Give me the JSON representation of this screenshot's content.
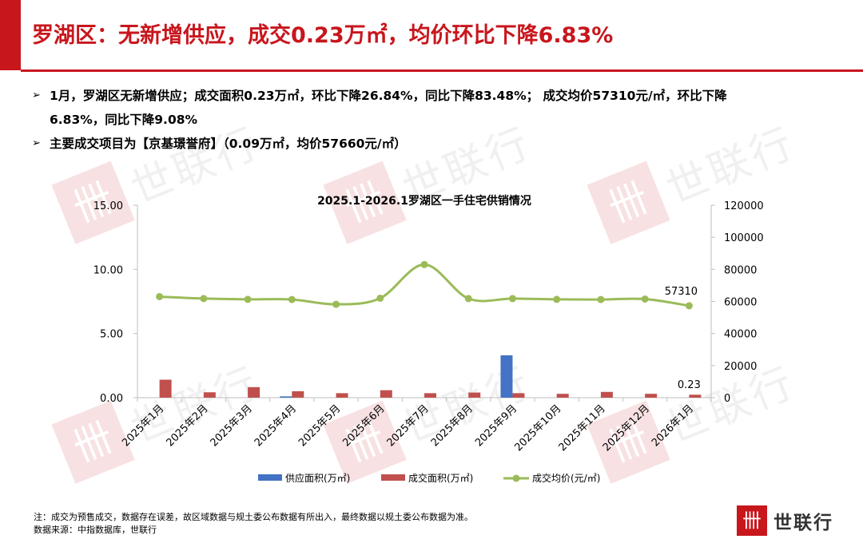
{
  "header": {
    "title": "罗湖区：无新增供应，成交0.23万㎡，均价环比下降6.83%"
  },
  "bullets": [
    {
      "line1": "1月，罗湖区无新增供应；成交面积0.23万㎡，环比下降26.84%，同比下降83.48%； 成交均价57310元/㎡，环比下降",
      "line2": "6.83%，同比下降9.08%"
    },
    {
      "line1": "主要成交项目为【京基璟誉府】（0.09万㎡，均价57660元/㎡）"
    }
  ],
  "watermark": {
    "text": "世联行",
    "logo_glyph": "卌"
  },
  "chart_data": {
    "type": "bar",
    "title": "2025.1-2026.1罗湖区一手住宅供销情况",
    "categories": [
      "2025年1月",
      "2025年2月",
      "2025年3月",
      "2025年4月",
      "2025年5月",
      "2025年6月",
      "2025年7月",
      "2025年8月",
      "2025年9月",
      "2025年10月",
      "2025年11月",
      "2025年12月",
      "2026年1月"
    ],
    "y_left": {
      "min": 0,
      "max": 15,
      "ticks": [
        "0.00",
        "5.00",
        "10.00",
        "15.00"
      ],
      "tick_values": [
        0,
        5,
        10,
        15
      ]
    },
    "y_right": {
      "min": 0,
      "max": 120000,
      "ticks": [
        "0",
        "20000",
        "40000",
        "60000",
        "80000",
        "100000",
        "120000"
      ],
      "tick_values": [
        0,
        20000,
        40000,
        60000,
        80000,
        100000,
        120000
      ]
    },
    "series": [
      {
        "name": "供应面积(万㎡)",
        "kind": "bar",
        "axis": "left",
        "color": "#4472c4",
        "values": [
          0,
          0,
          0,
          0.1,
          0,
          0,
          0,
          0,
          3.3,
          0,
          0,
          0,
          0
        ]
      },
      {
        "name": "成交面积(万㎡)",
        "kind": "bar",
        "axis": "left",
        "color": "#c0504d",
        "values": [
          1.4,
          0.42,
          0.82,
          0.5,
          0.35,
          0.58,
          0.35,
          0.4,
          0.35,
          0.3,
          0.45,
          0.3,
          0.23
        ]
      },
      {
        "name": "成交均价(元/㎡)",
        "kind": "line",
        "axis": "right",
        "color": "#9bbb59",
        "values": [
          63000,
          61800,
          61300,
          61200,
          58200,
          62000,
          83000,
          61800,
          61800,
          61300,
          61200,
          61500,
          57310
        ]
      }
    ],
    "data_labels": [
      {
        "series": 2,
        "index": 12,
        "text": "57310"
      },
      {
        "series": 1,
        "index": 12,
        "text": "0.23"
      }
    ],
    "legend_position": "bottom",
    "grid": false
  },
  "footer": {
    "note": "注：成交为预售成交，数据存在误差，故区域数据与规土委公布数据有所出入，最终数据以规土委公布数据为准。",
    "source": "数据来源：中指数据库，世联行",
    "brand_name": "世联行",
    "brand_glyph": "卌"
  }
}
